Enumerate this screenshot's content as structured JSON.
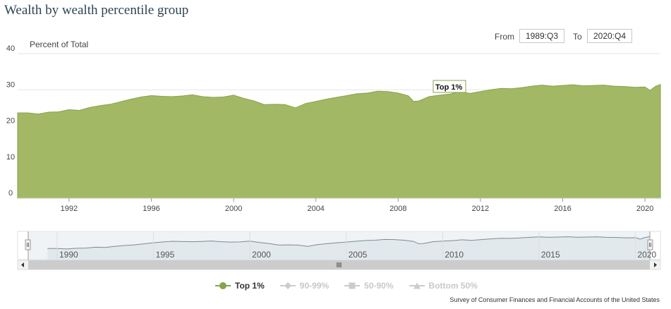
{
  "title": "Wealth by wealth percentile group",
  "range": {
    "from_label": "From",
    "from_value": "1989:Q3",
    "to_label": "To",
    "to_value": "2020:Q4"
  },
  "source": "Survey of Consumer Finances and Financial Accounts of the United States",
  "legend": [
    {
      "label": "Top 1%",
      "active": true,
      "icon": "circle-icon",
      "color": "#87a34c"
    },
    {
      "label": "90-99%",
      "active": false,
      "icon": "diamond-icon",
      "color": "#cccccc"
    },
    {
      "label": "50-90%",
      "active": false,
      "icon": "square-icon",
      "color": "#cccccc"
    },
    {
      "label": "Bottom 50%",
      "active": false,
      "icon": "triangle-icon",
      "color": "#cccccc"
    }
  ],
  "tooltip": {
    "label": "Top 1%"
  },
  "navigator": {
    "tick_labels": [
      "1990",
      "1995",
      "2000",
      "2005",
      "2010",
      "2015",
      "2020"
    ]
  },
  "chart_data": {
    "type": "area",
    "title": "Wealth by wealth percentile group",
    "ylabel": "Percent of Total",
    "ylim": [
      0,
      40
    ],
    "yticks": [
      0,
      10,
      20,
      30,
      40
    ],
    "xlim": [
      1989.5,
      2020.75
    ],
    "xticks": [
      "1992",
      "1996",
      "2000",
      "2004",
      "2008",
      "2012",
      "2016",
      "2020"
    ],
    "grid": true,
    "legend_position": "bottom",
    "series": [
      {
        "name": "Top 1%",
        "color": "#a3b865",
        "points": [
          [
            1989.5,
            23.6
          ],
          [
            1990.0,
            23.6
          ],
          [
            1990.5,
            23.3
          ],
          [
            1991.0,
            23.8
          ],
          [
            1991.5,
            23.9
          ],
          [
            1992.0,
            24.5
          ],
          [
            1992.5,
            24.3
          ],
          [
            1993.0,
            25.1
          ],
          [
            1993.5,
            25.6
          ],
          [
            1994.0,
            26.0
          ],
          [
            1994.5,
            26.7
          ],
          [
            1995.0,
            27.4
          ],
          [
            1995.5,
            28.0
          ],
          [
            1996.0,
            28.4
          ],
          [
            1996.5,
            28.2
          ],
          [
            1997.0,
            28.1
          ],
          [
            1997.5,
            28.3
          ],
          [
            1998.0,
            28.6
          ],
          [
            1998.5,
            28.1
          ],
          [
            1999.0,
            27.9
          ],
          [
            1999.5,
            28.0
          ],
          [
            2000.0,
            28.5
          ],
          [
            2000.5,
            27.6
          ],
          [
            2001.0,
            26.9
          ],
          [
            2001.5,
            25.9
          ],
          [
            2002.0,
            26.0
          ],
          [
            2002.5,
            25.9
          ],
          [
            2003.0,
            25.0
          ],
          [
            2003.5,
            26.2
          ],
          [
            2004.0,
            26.8
          ],
          [
            2004.5,
            27.4
          ],
          [
            2005.0,
            27.9
          ],
          [
            2005.5,
            28.4
          ],
          [
            2006.0,
            28.9
          ],
          [
            2006.5,
            29.1
          ],
          [
            2007.0,
            29.6
          ],
          [
            2007.5,
            29.5
          ],
          [
            2008.0,
            29.1
          ],
          [
            2008.5,
            28.3
          ],
          [
            2008.75,
            26.8
          ],
          [
            2009.0,
            26.9
          ],
          [
            2009.5,
            28.1
          ],
          [
            2010.0,
            28.5
          ],
          [
            2010.5,
            28.8
          ],
          [
            2011.0,
            29.4
          ],
          [
            2011.5,
            29.0
          ],
          [
            2012.0,
            29.5
          ],
          [
            2012.5,
            30.0
          ],
          [
            2013.0,
            30.4
          ],
          [
            2013.5,
            30.3
          ],
          [
            2014.0,
            30.6
          ],
          [
            2014.5,
            31.0
          ],
          [
            2015.0,
            31.3
          ],
          [
            2015.5,
            31.0
          ],
          [
            2016.0,
            31.2
          ],
          [
            2016.5,
            31.4
          ],
          [
            2017.0,
            31.1
          ],
          [
            2017.5,
            31.2
          ],
          [
            2018.0,
            31.3
          ],
          [
            2018.5,
            31.0
          ],
          [
            2019.0,
            30.9
          ],
          [
            2019.5,
            30.7
          ],
          [
            2020.0,
            30.8
          ],
          [
            2020.25,
            29.8
          ],
          [
            2020.5,
            30.9
          ],
          [
            2020.75,
            31.5
          ]
        ]
      }
    ]
  }
}
